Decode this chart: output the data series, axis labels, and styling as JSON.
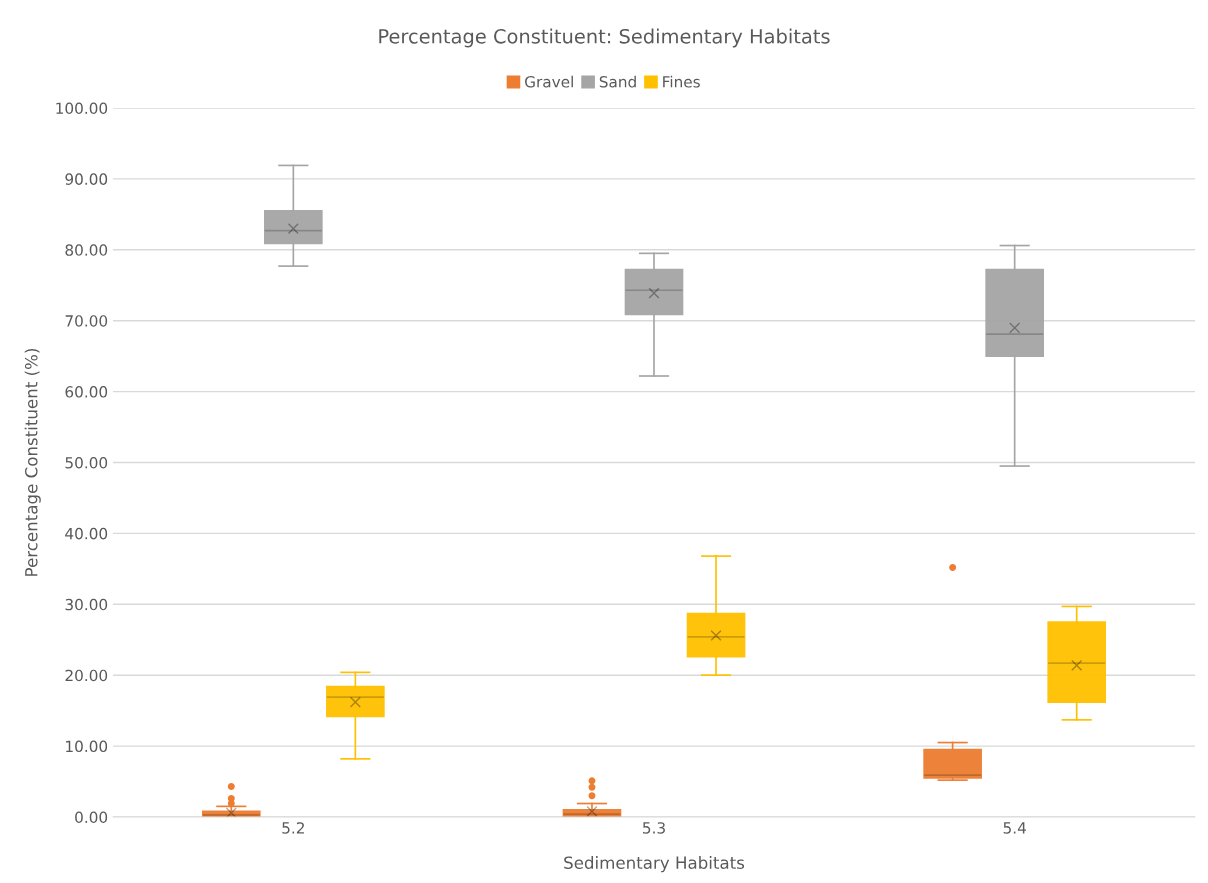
{
  "chart_data": {
    "type": "box",
    "title": "Percentage Constituent: Sedimentary Habitats",
    "xlabel": "Sedimentary Habitats",
    "ylabel": "Percentage Constituent (%)",
    "categories": [
      "5.2",
      "5.3",
      "5.4"
    ],
    "series": [
      {
        "name": "Gravel",
        "color": "#ed7d31",
        "boxes": [
          {
            "low": 0,
            "q1": 0.1,
            "median": 0.3,
            "q3": 0.8,
            "high": 1.5,
            "mean": 0.6,
            "outliers": [
              1.9,
              2.6,
              4.3
            ]
          },
          {
            "low": 0,
            "q1": 0.1,
            "median": 0.4,
            "q3": 1.0,
            "high": 1.9,
            "mean": 0.8,
            "outliers": [
              3.0,
              4.2,
              5.1
            ]
          },
          {
            "low": 5.2,
            "q1": 5.5,
            "median": 5.9,
            "q3": 9.5,
            "high": 10.5,
            "outliers": [
              35.2
            ]
          }
        ]
      },
      {
        "name": "Sand",
        "color": "#a5a5a5",
        "boxes": [
          {
            "low": 77.7,
            "q1": 80.9,
            "median": 82.7,
            "q3": 85.5,
            "high": 91.9,
            "mean": 83.0
          },
          {
            "low": 62.2,
            "q1": 70.9,
            "median": 74.3,
            "q3": 77.2,
            "high": 79.5,
            "mean": 73.9
          },
          {
            "low": 49.5,
            "q1": 65.0,
            "median": 68.1,
            "q3": 77.2,
            "high": 80.6,
            "mean": 69.0
          }
        ]
      },
      {
        "name": "Fines",
        "color": "#ffc000",
        "boxes": [
          {
            "low": 8.2,
            "q1": 14.2,
            "median": 16.9,
            "q3": 18.4,
            "high": 20.4,
            "mean": 16.2
          },
          {
            "low": 20.0,
            "q1": 22.6,
            "median": 25.4,
            "q3": 28.7,
            "high": 36.8,
            "mean": 25.6
          },
          {
            "low": 13.7,
            "q1": 16.2,
            "median": 21.7,
            "q3": 27.5,
            "high": 29.7,
            "mean": 21.4
          }
        ]
      }
    ],
    "ylim": [
      0,
      100
    ],
    "yticks": [
      {
        "value": 0,
        "label": "0.00"
      },
      {
        "value": 10,
        "label": "10.00"
      },
      {
        "value": 20,
        "label": "20.00"
      },
      {
        "value": 30,
        "label": "30.00"
      },
      {
        "value": 40,
        "label": "40.00"
      },
      {
        "value": 50,
        "label": "50.00"
      },
      {
        "value": 60,
        "label": "60.00"
      },
      {
        "value": 70,
        "label": "70.00"
      },
      {
        "value": 80,
        "label": "80.00"
      },
      {
        "value": 90,
        "label": "90.00"
      },
      {
        "value": 100,
        "label": "100.00"
      }
    ],
    "grid": "y",
    "legend": "top"
  }
}
